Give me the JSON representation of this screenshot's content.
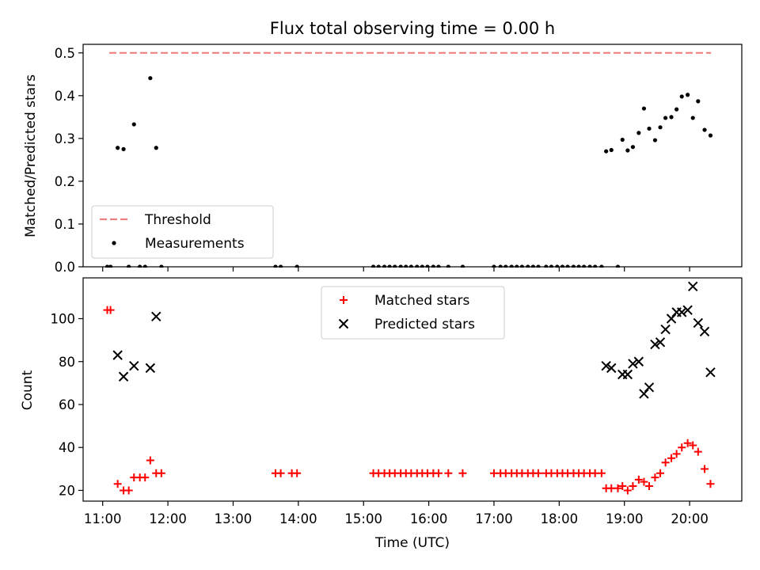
{
  "chart_data": {
    "title": "Flux total observing time = 0.00 h",
    "xlabel": "Time (UTC)",
    "x_ticks": [
      "11:00",
      "12:00",
      "13:00",
      "14:00",
      "15:00",
      "16:00",
      "17:00",
      "18:00",
      "19:00",
      "20:00"
    ],
    "x_tick_hours": [
      11,
      12,
      13,
      14,
      15,
      16,
      17,
      18,
      19,
      20
    ],
    "xlim_hours": [
      10.7,
      20.8
    ],
    "panels": [
      {
        "type": "scatter",
        "ylabel": "Matched/Predicted stars",
        "ylim": [
          0,
          0.52
        ],
        "y_ticks": [
          0.0,
          0.1,
          0.2,
          0.3,
          0.4,
          0.5
        ],
        "y_tick_labels": [
          "0.0",
          "0.1",
          "0.2",
          "0.3",
          "0.4",
          "0.5"
        ],
        "grid": false,
        "legend_position": "lower-left",
        "threshold": {
          "name": "Threshold",
          "value": 0.5,
          "x_start": 11.1,
          "x_end": 20.33,
          "color": "#f08080",
          "style": "dashed"
        },
        "series": [
          {
            "name": "Measurements",
            "marker": "dot",
            "color": "#000000",
            "points": [
              [
                11.07,
                0.0
              ],
              [
                11.12,
                0.0
              ],
              [
                11.23,
                0.278
              ],
              [
                11.32,
                0.275
              ],
              [
                11.4,
                0.0
              ],
              [
                11.48,
                0.333
              ],
              [
                11.57,
                0.0
              ],
              [
                11.65,
                0.0
              ],
              [
                11.73,
                0.441
              ],
              [
                11.82,
                0.278
              ],
              [
                11.9,
                0.0
              ],
              [
                13.65,
                0.0
              ],
              [
                13.73,
                0.0
              ],
              [
                13.98,
                0.0
              ],
              [
                15.15,
                0.0
              ],
              [
                15.23,
                0.0
              ],
              [
                15.32,
                0.0
              ],
              [
                15.4,
                0.0
              ],
              [
                15.48,
                0.0
              ],
              [
                15.57,
                0.0
              ],
              [
                15.65,
                0.0
              ],
              [
                15.73,
                0.0
              ],
              [
                15.82,
                0.0
              ],
              [
                15.9,
                0.0
              ],
              [
                15.98,
                0.0
              ],
              [
                16.07,
                0.0
              ],
              [
                16.15,
                0.0
              ],
              [
                16.3,
                0.0
              ],
              [
                16.52,
                0.0
              ],
              [
                17.0,
                0.0
              ],
              [
                17.1,
                0.0
              ],
              [
                17.18,
                0.0
              ],
              [
                17.27,
                0.0
              ],
              [
                17.35,
                0.0
              ],
              [
                17.43,
                0.0
              ],
              [
                17.52,
                0.0
              ],
              [
                17.6,
                0.0
              ],
              [
                17.68,
                0.0
              ],
              [
                17.8,
                0.0
              ],
              [
                17.88,
                0.0
              ],
              [
                17.97,
                0.0
              ],
              [
                18.05,
                0.0
              ],
              [
                18.13,
                0.0
              ],
              [
                18.22,
                0.0
              ],
              [
                18.3,
                0.0
              ],
              [
                18.38,
                0.0
              ],
              [
                18.47,
                0.0
              ],
              [
                18.55,
                0.0
              ],
              [
                18.65,
                0.0
              ],
              [
                18.72,
                0.27
              ],
              [
                18.8,
                0.273
              ],
              [
                18.9,
                0.0
              ],
              [
                18.97,
                0.297
              ],
              [
                19.05,
                0.272
              ],
              [
                19.13,
                0.28
              ],
              [
                19.22,
                0.313
              ],
              [
                19.3,
                0.37
              ],
              [
                19.38,
                0.323
              ],
              [
                19.47,
                0.296
              ],
              [
                19.55,
                0.326
              ],
              [
                19.63,
                0.348
              ],
              [
                19.72,
                0.35
              ],
              [
                19.8,
                0.368
              ],
              [
                19.88,
                0.398
              ],
              [
                19.97,
                0.402
              ],
              [
                20.05,
                0.348
              ],
              [
                20.13,
                0.387
              ],
              [
                20.23,
                0.32
              ],
              [
                20.32,
                0.307
              ]
            ]
          }
        ]
      },
      {
        "type": "scatter",
        "ylabel": "Count",
        "ylim": [
          15,
          119
        ],
        "y_ticks": [
          20,
          40,
          60,
          80,
          100
        ],
        "y_tick_labels": [
          "20",
          "40",
          "60",
          "80",
          "100"
        ],
        "grid": false,
        "legend_position": "upper-center",
        "series": [
          {
            "name": "Matched stars",
            "marker": "plus",
            "color": "#ff0000",
            "points": [
              [
                11.07,
                104
              ],
              [
                11.12,
                104
              ],
              [
                11.23,
                23
              ],
              [
                11.32,
                20
              ],
              [
                11.4,
                20
              ],
              [
                11.48,
                26
              ],
              [
                11.57,
                26
              ],
              [
                11.65,
                26
              ],
              [
                11.73,
                34
              ],
              [
                11.82,
                28
              ],
              [
                11.9,
                28
              ],
              [
                13.65,
                28
              ],
              [
                13.73,
                28
              ],
              [
                13.9,
                28
              ],
              [
                13.98,
                28
              ],
              [
                15.15,
                28
              ],
              [
                15.23,
                28
              ],
              [
                15.32,
                28
              ],
              [
                15.4,
                28
              ],
              [
                15.48,
                28
              ],
              [
                15.57,
                28
              ],
              [
                15.65,
                28
              ],
              [
                15.73,
                28
              ],
              [
                15.82,
                28
              ],
              [
                15.9,
                28
              ],
              [
                15.98,
                28
              ],
              [
                16.07,
                28
              ],
              [
                16.15,
                28
              ],
              [
                16.3,
                28
              ],
              [
                16.52,
                28
              ],
              [
                17.0,
                28
              ],
              [
                17.1,
                28
              ],
              [
                17.18,
                28
              ],
              [
                17.27,
                28
              ],
              [
                17.35,
                28
              ],
              [
                17.43,
                28
              ],
              [
                17.52,
                28
              ],
              [
                17.6,
                28
              ],
              [
                17.68,
                28
              ],
              [
                17.8,
                28
              ],
              [
                17.88,
                28
              ],
              [
                17.97,
                28
              ],
              [
                18.05,
                28
              ],
              [
                18.13,
                28
              ],
              [
                18.22,
                28
              ],
              [
                18.3,
                28
              ],
              [
                18.38,
                28
              ],
              [
                18.47,
                28
              ],
              [
                18.55,
                28
              ],
              [
                18.65,
                28
              ],
              [
                18.72,
                21
              ],
              [
                18.8,
                21
              ],
              [
                18.9,
                21
              ],
              [
                18.97,
                22
              ],
              [
                19.05,
                20
              ],
              [
                19.13,
                22
              ],
              [
                19.22,
                25
              ],
              [
                19.3,
                24
              ],
              [
                19.38,
                22
              ],
              [
                19.47,
                26
              ],
              [
                19.55,
                28
              ],
              [
                19.63,
                33
              ],
              [
                19.72,
                35
              ],
              [
                19.8,
                37
              ],
              [
                19.88,
                40
              ],
              [
                19.97,
                42
              ],
              [
                20.05,
                41
              ],
              [
                20.13,
                38
              ],
              [
                20.23,
                30
              ],
              [
                20.32,
                23
              ]
            ]
          },
          {
            "name": "Predicted stars",
            "marker": "x",
            "color": "#000000",
            "points": [
              [
                11.23,
                83
              ],
              [
                11.32,
                73
              ],
              [
                11.48,
                78
              ],
              [
                11.73,
                77
              ],
              [
                11.82,
                101
              ],
              [
                18.72,
                78
              ],
              [
                18.8,
                77
              ],
              [
                18.97,
                74
              ],
              [
                19.05,
                74
              ],
              [
                19.13,
                79
              ],
              [
                19.22,
                80
              ],
              [
                19.3,
                65
              ],
              [
                19.38,
                68
              ],
              [
                19.47,
                88
              ],
              [
                19.55,
                89
              ],
              [
                19.63,
                95
              ],
              [
                19.72,
                100
              ],
              [
                19.8,
                103
              ],
              [
                19.88,
                103
              ],
              [
                19.97,
                104
              ],
              [
                20.05,
                115
              ],
              [
                20.13,
                98
              ],
              [
                20.23,
                94
              ],
              [
                20.32,
                75
              ]
            ]
          }
        ]
      }
    ]
  }
}
